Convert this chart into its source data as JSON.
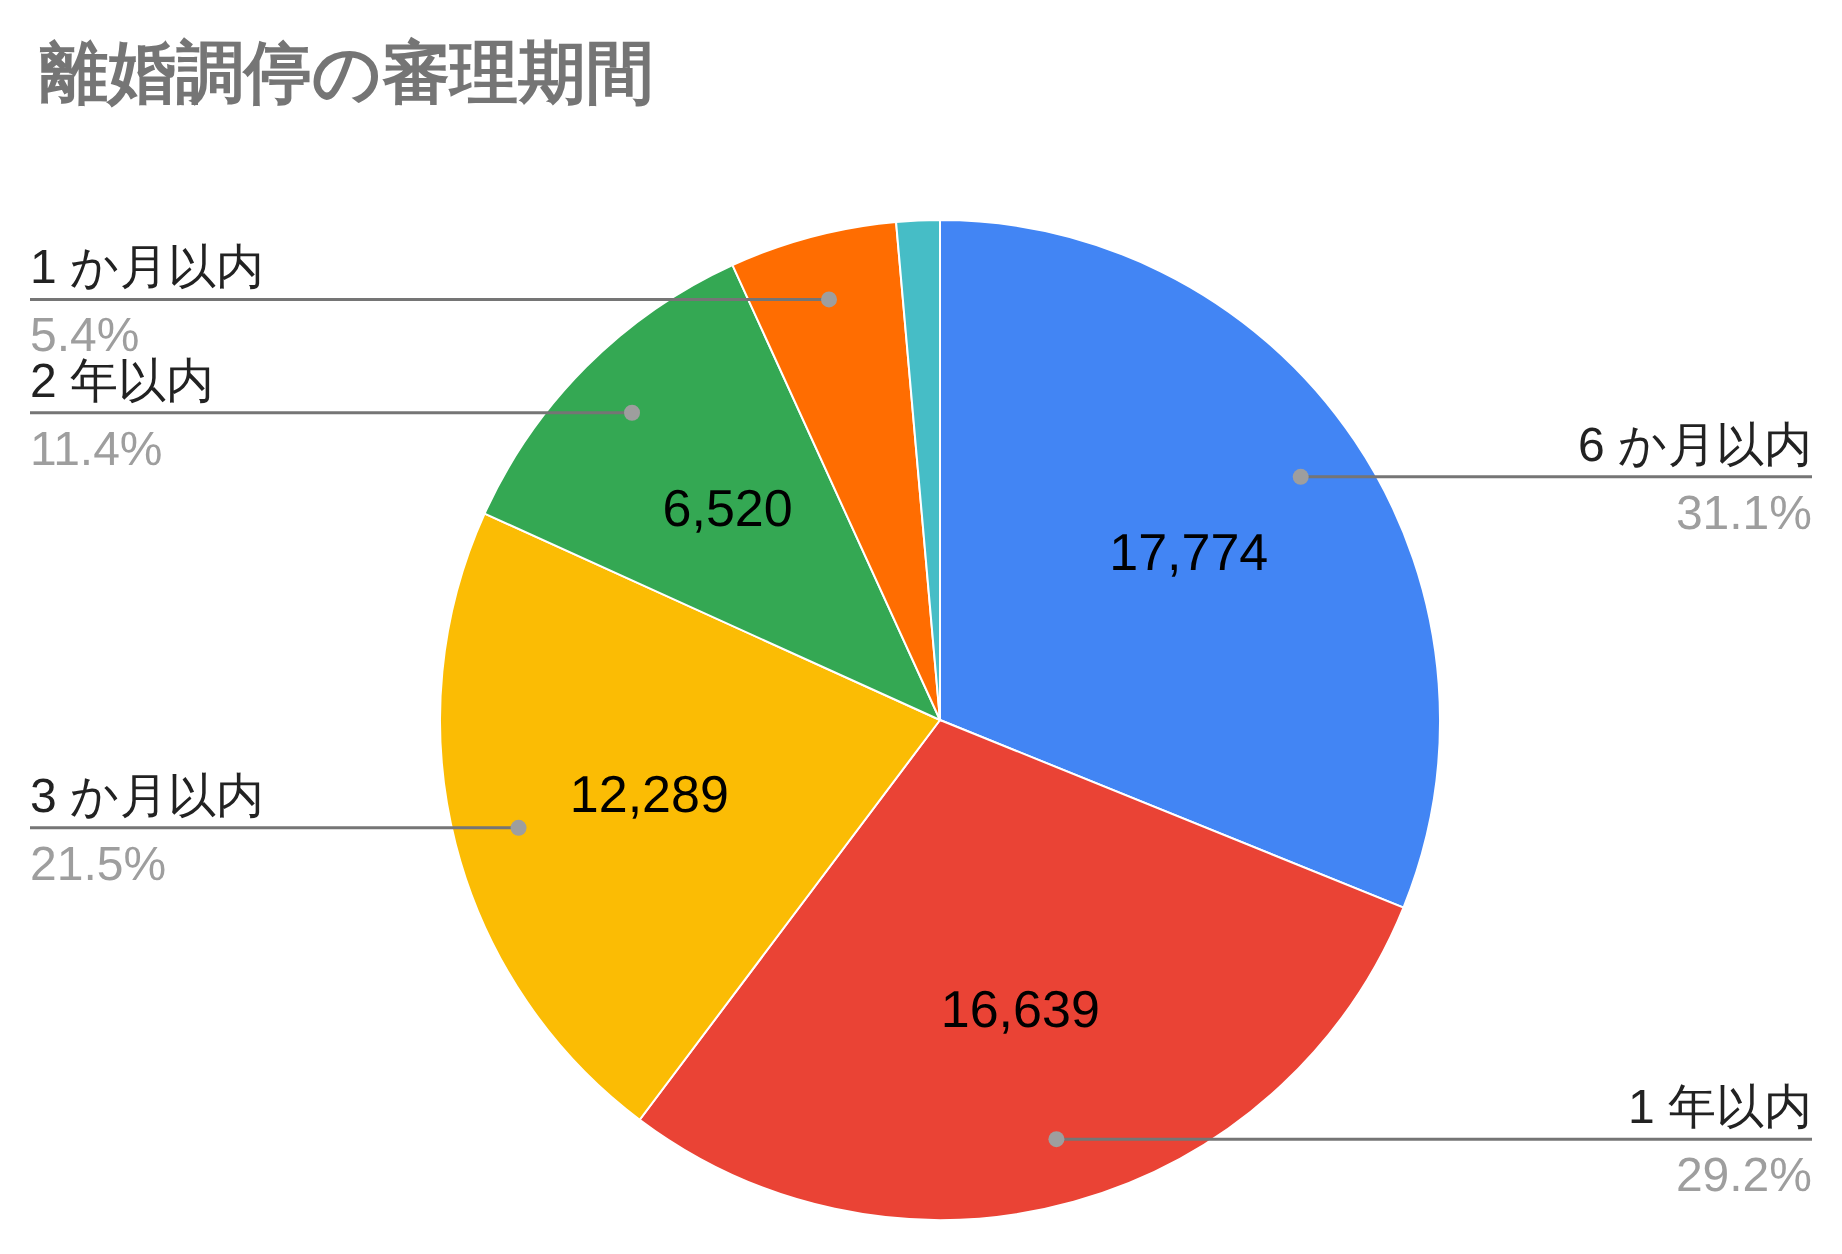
{
  "chart_data": {
    "type": "pie",
    "title": "離婚調停の審理期間",
    "categories": [
      "6 か月以内",
      "1 年以内",
      "3 か月以内",
      "2 年以内",
      "1 か月以内",
      null
    ],
    "values": [
      17774,
      16639,
      12289,
      6520,
      3090,
      800
    ],
    "colors": [
      "#4285f4",
      "#ea4335",
      "#fbbc04",
      "#34a853",
      "#ff6d01",
      "#46bdc6"
    ],
    "value_labels": [
      "17,774",
      "16,639",
      "12,289",
      "6,520",
      null,
      null
    ],
    "annotations": [
      {
        "text": "31.1%",
        "x": "6 か月以内"
      },
      {
        "text": "29.2%",
        "x": "1 年以内"
      },
      {
        "text": "21.5%",
        "x": "3 か月以内"
      },
      {
        "text": "11.4%",
        "x": "2 年以内"
      },
      {
        "text": "5.4%",
        "x": "1 か月以内"
      }
    ]
  }
}
